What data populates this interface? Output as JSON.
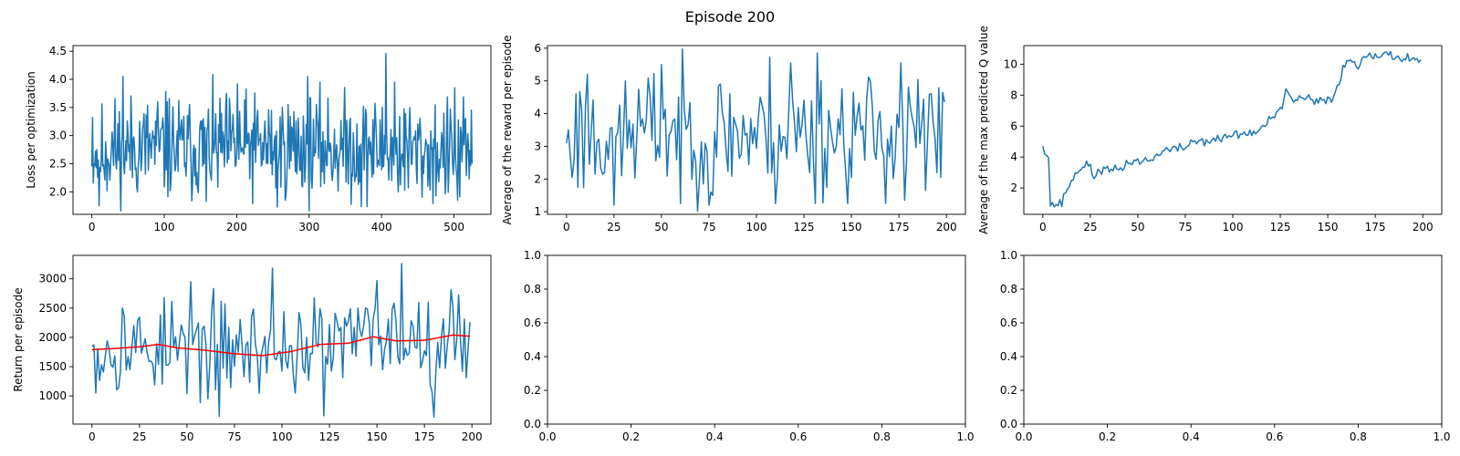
{
  "figure": {
    "suptitle": "Episode 200",
    "series_color": "#1f77b4",
    "average_color": "#ff0000"
  },
  "chart_data": [
    {
      "type": "line",
      "ylabel": "Loss per optimization",
      "xlim": [
        -26,
        551
      ],
      "ylim": [
        1.6,
        4.6
      ],
      "xticks": [
        0,
        100,
        200,
        300,
        400,
        500
      ],
      "yticks": [
        2.0,
        2.5,
        3.0,
        3.5,
        4.0,
        4.5
      ],
      "x_count": 526,
      "seed": 11,
      "anchors": [
        [
          0,
          2.7
        ],
        [
          60,
          2.8
        ],
        [
          130,
          2.75
        ],
        [
          200,
          2.8
        ],
        [
          300,
          2.8
        ],
        [
          400,
          2.75
        ],
        [
          525,
          2.65
        ]
      ],
      "amplitude": 0.55,
      "spikes": [
        [
          0,
          2.45
        ],
        [
          1,
          3.32
        ],
        [
          10,
          1.75
        ],
        [
          43,
          4.05
        ],
        [
          91,
          3.6
        ],
        [
          104,
          3.6
        ],
        [
          158,
          1.83
        ],
        [
          201,
          3.92
        ],
        [
          256,
          1.73
        ],
        [
          298,
          4.05
        ],
        [
          372,
          1.74
        ],
        [
          406,
          4.46
        ],
        [
          418,
          3.95
        ],
        [
          501,
          3.85
        ],
        [
          505,
          1.85
        ],
        [
          525,
          2.5
        ]
      ],
      "spike_radius": 0
    },
    {
      "type": "line",
      "ylabel": "Average of the reward per episode",
      "xlim": [
        -10,
        210
      ],
      "ylim": [
        0.92,
        6.08
      ],
      "xticks": [
        0,
        25,
        50,
        75,
        100,
        125,
        150,
        175,
        200
      ],
      "yticks": [
        1,
        2,
        3,
        4,
        5,
        6
      ],
      "x_count": 200,
      "seed": 23,
      "anchors": [
        [
          0,
          3.3
        ],
        [
          50,
          3.5
        ],
        [
          100,
          3.4
        ],
        [
          150,
          3.4
        ],
        [
          199,
          3.4
        ]
      ],
      "amplitude": 1.15,
      "spikes": [
        [
          0,
          3.1
        ],
        [
          1,
          3.5
        ],
        [
          3,
          2.05
        ],
        [
          5,
          4.6
        ],
        [
          6,
          1.75
        ],
        [
          11,
          5.2
        ],
        [
          25,
          1.2
        ],
        [
          50,
          5.5
        ],
        [
          60,
          1.25
        ],
        [
          75,
          1.2
        ],
        [
          76,
          1.6
        ],
        [
          107,
          5.72
        ],
        [
          110,
          1.25
        ],
        [
          118,
          5.55
        ],
        [
          131,
          1.25
        ],
        [
          132,
          5.85
        ],
        [
          148,
          1.25
        ],
        [
          176,
          5.55
        ],
        [
          178,
          1.35
        ],
        [
          189,
          1.65
        ],
        [
          197,
          2.05
        ],
        [
          199,
          4.35
        ]
      ],
      "spike_radius": 0
    },
    {
      "type": "line",
      "ylabel": "Average of the max predicted Q value",
      "xlim": [
        -10,
        210
      ],
      "ylim": [
        0.3,
        11.2
      ],
      "xticks": [
        0,
        25,
        50,
        75,
        100,
        125,
        150,
        175,
        200
      ],
      "yticks": [
        2,
        4,
        6,
        8,
        10
      ],
      "x_count": 200,
      "seed": 37,
      "anchors": [
        [
          0,
          4.85
        ],
        [
          2,
          4.2
        ],
        [
          3,
          4.0
        ],
        [
          4,
          0.9
        ],
        [
          10,
          1.0
        ],
        [
          12,
          1.8
        ],
        [
          15,
          2.4
        ],
        [
          20,
          3.4
        ],
        [
          25,
          3.4
        ],
        [
          27,
          2.7
        ],
        [
          30,
          3.2
        ],
        [
          37,
          3.1
        ],
        [
          42,
          3.3
        ],
        [
          45,
          3.7
        ],
        [
          58,
          3.8
        ],
        [
          62,
          4.4
        ],
        [
          75,
          4.6
        ],
        [
          78,
          5.0
        ],
        [
          93,
          5.1
        ],
        [
          98,
          5.4
        ],
        [
          113,
          5.6
        ],
        [
          118,
          6.2
        ],
        [
          123,
          6.8
        ],
        [
          126,
          7.0
        ],
        [
          128,
          8.4
        ],
        [
          131,
          7.7
        ],
        [
          140,
          7.8
        ],
        [
          143,
          7.5
        ],
        [
          152,
          7.8
        ],
        [
          155,
          8.5
        ],
        [
          158,
          9.8
        ],
        [
          163,
          10.3
        ],
        [
          166,
          9.7
        ],
        [
          169,
          10.7
        ],
        [
          185,
          10.5
        ],
        [
          199,
          10.3
        ]
      ],
      "amplitude": 0.18,
      "spikes": [],
      "spike_radius": 0
    },
    {
      "type": "line",
      "ylabel": "Return per episode",
      "xlim": [
        -10,
        210
      ],
      "ylim": [
        520,
        3400
      ],
      "xticks": [
        0,
        25,
        50,
        75,
        100,
        125,
        150,
        175,
        200
      ],
      "yticks": [
        1000,
        1500,
        2000,
        2500,
        3000
      ],
      "x_count": 200,
      "seed": 53,
      "anchors": [
        [
          0,
          1800
        ],
        [
          50,
          1850
        ],
        [
          100,
          1800
        ],
        [
          150,
          2000
        ],
        [
          199,
          2050
        ]
      ],
      "amplitude": 480,
      "spikes": [
        [
          0,
          1850
        ],
        [
          2,
          1050
        ],
        [
          16,
          2500
        ],
        [
          50,
          1040
        ],
        [
          52,
          2950
        ],
        [
          67,
          650
        ],
        [
          95,
          3180
        ],
        [
          122,
          660
        ],
        [
          150,
          2970
        ],
        [
          163,
          3260
        ],
        [
          180,
          640
        ],
        [
          199,
          2260
        ]
      ],
      "spike_radius": 0,
      "moving_average": [
        [
          0,
          1790
        ],
        [
          12,
          1810
        ],
        [
          25,
          1840
        ],
        [
          35,
          1880
        ],
        [
          45,
          1820
        ],
        [
          60,
          1780
        ],
        [
          75,
          1720
        ],
        [
          90,
          1690
        ],
        [
          105,
          1760
        ],
        [
          120,
          1880
        ],
        [
          135,
          1900
        ],
        [
          148,
          2010
        ],
        [
          160,
          1940
        ],
        [
          175,
          1950
        ],
        [
          190,
          2040
        ],
        [
          199,
          2020
        ]
      ]
    },
    {
      "type": "line",
      "ylabel": "",
      "xlim": [
        0,
        1
      ],
      "ylim": [
        0,
        1
      ],
      "xticks": [
        0.0,
        0.2,
        0.4,
        0.6,
        0.8,
        1.0
      ],
      "yticks": [
        0.0,
        0.2,
        0.4,
        0.6,
        0.8,
        1.0
      ],
      "x_count": 0,
      "series": []
    },
    {
      "type": "line",
      "ylabel": "",
      "xlim": [
        0,
        1
      ],
      "ylim": [
        0,
        1
      ],
      "xticks": [
        0.0,
        0.2,
        0.4,
        0.6,
        0.8,
        1.0
      ],
      "yticks": [
        0.0,
        0.2,
        0.4,
        0.6,
        0.8,
        1.0
      ],
      "x_count": 0,
      "series": []
    }
  ]
}
